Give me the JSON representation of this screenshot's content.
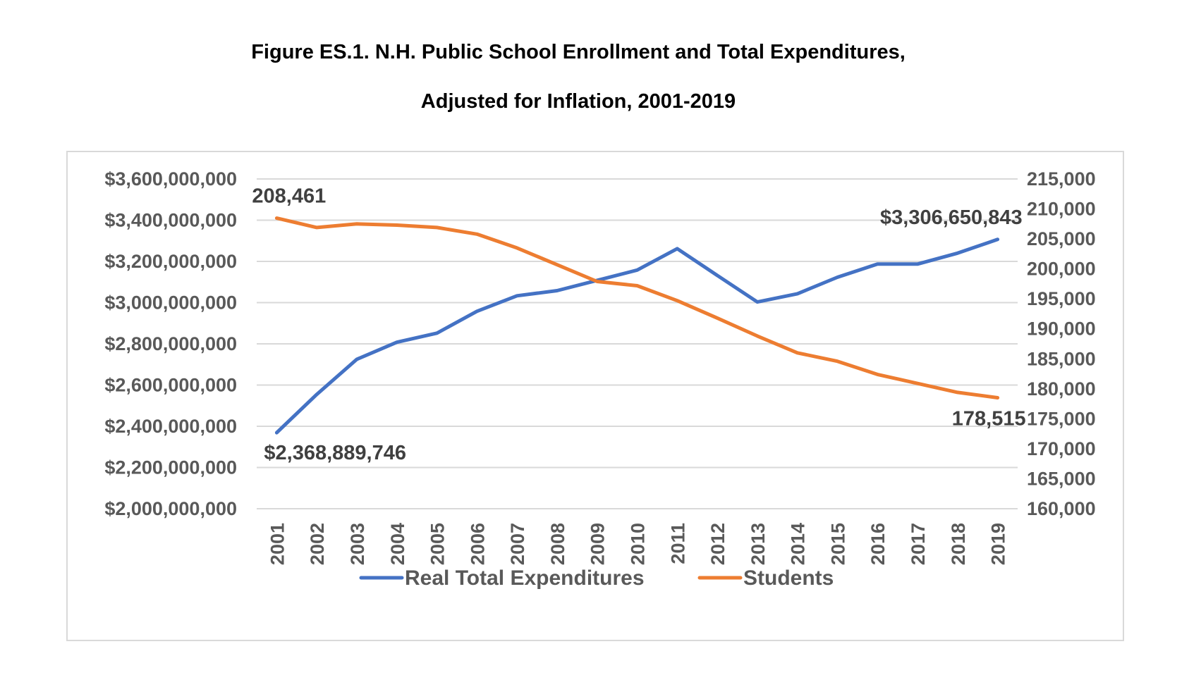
{
  "chart_data": {
    "type": "line",
    "title": "Figure ES.1.  N.H. Public School Enrollment and Total Expenditures,",
    "subtitle": "Adjusted for Inflation, 2001-2019",
    "x": [
      "2001",
      "2002",
      "2003",
      "2004",
      "2005",
      "2006",
      "2007",
      "2008",
      "2009",
      "2010",
      "2011",
      "2012",
      "2013",
      "2014",
      "2015",
      "2016",
      "2017",
      "2018",
      "2019"
    ],
    "y_left": {
      "min": 2000000000,
      "max": 3600000000,
      "ticks": [
        "$3,600,000,000",
        "$3,400,000,000",
        "$3,200,000,000",
        "$3,000,000,000",
        "$2,800,000,000",
        "$2,600,000,000",
        "$2,400,000,000",
        "$2,200,000,000",
        "$2,000,000,000"
      ]
    },
    "y_right": {
      "min": 160000,
      "max": 215000,
      "ticks": [
        "215,000",
        "210,000",
        "205,000",
        "200,000",
        "195,000",
        "190,000",
        "185,000",
        "180,000",
        "175,000",
        "170,000",
        "165,000",
        "160,000"
      ]
    },
    "grid": true,
    "legend_position": "bottom",
    "series": [
      {
        "name": "Real Total Expenditures",
        "axis": "left",
        "color": "#4472c4",
        "values": [
          2368889746,
          2555000000,
          2725000000,
          2808000000,
          2852000000,
          2958000000,
          3033000000,
          3058000000,
          3108000000,
          3158000000,
          3262000000,
          3132000000,
          3003000000,
          3043000000,
          3123000000,
          3187000000,
          3187000000,
          3240000000,
          3306650843
        ],
        "first_label": "$2,368,889,746",
        "last_label": "$3,306,650,843"
      },
      {
        "name": "Students",
        "axis": "right",
        "color": "#ed7d31",
        "values": [
          208461,
          206900,
          207500,
          207300,
          206900,
          205800,
          203500,
          200700,
          197900,
          197200,
          194700,
          191800,
          188800,
          186000,
          184600,
          182400,
          180900,
          179400,
          178515
        ],
        "first_label": "208,461",
        "last_label": "178,515"
      }
    ]
  }
}
